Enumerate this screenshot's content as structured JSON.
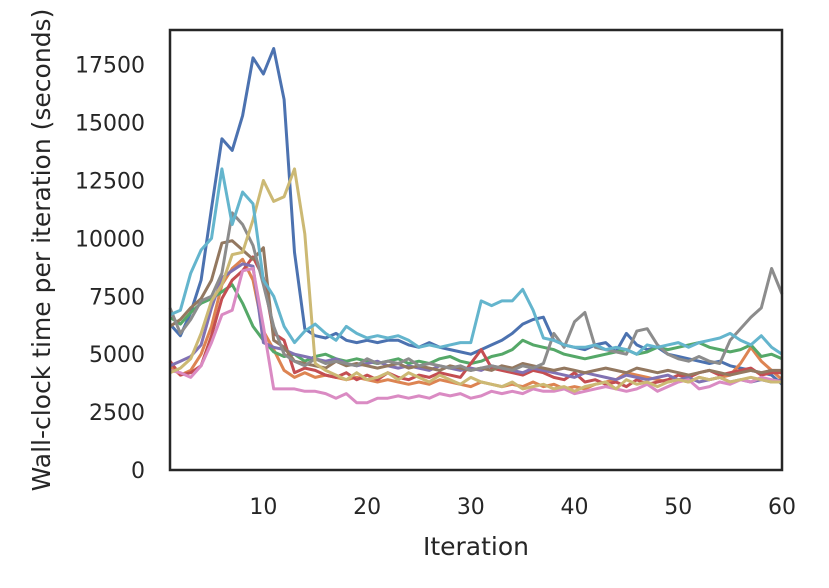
{
  "chart_data": {
    "type": "line",
    "title": "",
    "xlabel": "Iteration",
    "ylabel": "Wall-clock time per iteration (seconds)",
    "xlim": [
      1,
      60
    ],
    "ylim": [
      0,
      19000
    ],
    "xticks": [
      10,
      20,
      30,
      40,
      50,
      60
    ],
    "yticks": [
      0,
      2500,
      5000,
      7500,
      10000,
      12500,
      15000,
      17500
    ],
    "grid": false,
    "legend": "none",
    "x": [
      1,
      2,
      3,
      4,
      5,
      6,
      7,
      8,
      9,
      10,
      11,
      12,
      13,
      14,
      15,
      16,
      17,
      18,
      19,
      20,
      21,
      22,
      23,
      24,
      25,
      26,
      27,
      28,
      29,
      30,
      31,
      32,
      33,
      34,
      35,
      36,
      37,
      38,
      39,
      40,
      41,
      42,
      43,
      44,
      45,
      46,
      47,
      48,
      49,
      50,
      51,
      52,
      53,
      54,
      55,
      56,
      57,
      58,
      59,
      60
    ],
    "series": [
      {
        "color": "#4c72b0",
        "values": [
          6300,
          5800,
          6800,
          8200,
          11300,
          14300,
          13800,
          15300,
          17800,
          17100,
          18200,
          16000,
          9400,
          6100,
          5800,
          5700,
          5900,
          5600,
          5500,
          5600,
          5500,
          5600,
          5600,
          5400,
          5300,
          5500,
          5300,
          5200,
          5100,
          5000,
          5200,
          5400,
          5600,
          5900,
          6300,
          6500,
          6600,
          5600,
          5400,
          5300,
          5200,
          5400,
          5500,
          5100,
          5900,
          5400,
          5200,
          5300,
          5000,
          4900,
          4800,
          4700,
          4600,
          4700,
          4500,
          4400,
          4300,
          4200,
          4100,
          3700
        ]
      },
      {
        "color": "#dd8452",
        "values": [
          4500,
          4100,
          4300,
          5000,
          6200,
          8000,
          8700,
          9100,
          8200,
          6000,
          5200,
          4300,
          4000,
          4200,
          4000,
          4100,
          4000,
          3900,
          4000,
          3900,
          3800,
          3900,
          3800,
          3700,
          3800,
          3700,
          3900,
          3800,
          3700,
          3600,
          3800,
          3700,
          3600,
          3700,
          3600,
          3800,
          3600,
          3700,
          3500,
          3600,
          3500,
          3700,
          3800,
          3900,
          4200,
          4100,
          4000,
          3900,
          3800,
          3900,
          3800,
          4000,
          3900,
          4000,
          4100,
          4600,
          5300,
          4700,
          4300,
          3900
        ]
      },
      {
        "color": "#55a868",
        "values": [
          6600,
          6300,
          6800,
          7200,
          7400,
          7700,
          8000,
          7200,
          6200,
          5600,
          5100,
          4900,
          5000,
          4700,
          4900,
          5000,
          4800,
          4700,
          4800,
          4700,
          4600,
          4700,
          4800,
          4600,
          4700,
          4600,
          4800,
          4900,
          4700,
          4600,
          4700,
          4900,
          5000,
          5200,
          5600,
          5400,
          5300,
          5200,
          5000,
          4900,
          4800,
          4900,
          5000,
          5100,
          5200,
          5000,
          5100,
          5300,
          5200,
          5300,
          5400,
          5500,
          5300,
          5200,
          5100,
          5200,
          5400,
          4900,
          5000,
          4800
        ]
      },
      {
        "color": "#c44e52",
        "values": [
          4700,
          4100,
          4200,
          4500,
          5800,
          7400,
          8200,
          8600,
          9200,
          8300,
          5900,
          5600,
          4200,
          4400,
          4300,
          4100,
          4000,
          4200,
          3900,
          4100,
          3900,
          4200,
          4000,
          3900,
          4100,
          4000,
          4200,
          4100,
          4000,
          4600,
          5200,
          4400,
          4300,
          4200,
          4100,
          4300,
          4200,
          4000,
          3900,
          4200,
          3800,
          3900,
          3700,
          3800,
          3600,
          3900,
          3700,
          3800,
          3900,
          4100,
          4000,
          4200,
          4300,
          4100,
          4200,
          4300,
          4400,
          4100,
          4200,
          4200
        ]
      },
      {
        "color": "#8172b3",
        "values": [
          4500,
          4700,
          4900,
          5400,
          7000,
          8300,
          8600,
          8900,
          8800,
          5500,
          5300,
          5200,
          5000,
          4900,
          4800,
          4700,
          4800,
          4600,
          4500,
          4600,
          4700,
          4500,
          4400,
          4500,
          4400,
          4300,
          4500,
          4400,
          4300,
          4400,
          4300,
          4500,
          4400,
          4300,
          4200,
          4400,
          4300,
          4200,
          4100,
          4000,
          4200,
          4100,
          4000,
          3900,
          4100,
          4000,
          3900,
          4000,
          4100,
          3900,
          4000,
          3800,
          3900,
          4000,
          3800,
          3900,
          3800,
          3900,
          3800,
          3900
        ]
      },
      {
        "color": "#937860",
        "values": [
          6200,
          6500,
          7000,
          7400,
          8200,
          9800,
          9900,
          9500,
          9100,
          9600,
          5600,
          5300,
          4700,
          4600,
          4500,
          4400,
          4700,
          4500,
          4600,
          4500,
          4400,
          4500,
          4600,
          4400,
          4500,
          4400,
          4300,
          4500,
          4400,
          4300,
          4400,
          4300,
          4500,
          4400,
          4600,
          4500,
          4400,
          4300,
          4400,
          4300,
          4200,
          4300,
          4400,
          4300,
          4200,
          4400,
          4300,
          4200,
          4300,
          4200,
          4100,
          4200,
          4300,
          4200,
          4100,
          4200,
          4300,
          4200,
          4300,
          4300
        ]
      },
      {
        "color": "#da8bc3",
        "values": [
          4300,
          4200,
          4000,
          4500,
          5500,
          6700,
          6900,
          8600,
          8700,
          6200,
          3500,
          3500,
          3500,
          3400,
          3400,
          3300,
          3100,
          3300,
          2900,
          2900,
          3100,
          3100,
          3200,
          3100,
          3200,
          3100,
          3300,
          3200,
          3300,
          3100,
          3200,
          3400,
          3300,
          3400,
          3300,
          3500,
          3400,
          3400,
          3500,
          3300,
          3400,
          3500,
          3600,
          3500,
          3400,
          3500,
          3700,
          3400,
          3600,
          3800,
          3900,
          3500,
          3600,
          3800,
          3700,
          3900,
          3800,
          4000,
          3900,
          3800
        ]
      },
      {
        "color": "#8c8c8c",
        "values": [
          7000,
          5900,
          6500,
          7300,
          7500,
          8500,
          11100,
          10600,
          9700,
          8000,
          6200,
          5000,
          4700,
          4500,
          4800,
          4600,
          4700,
          4600,
          4500,
          4800,
          4600,
          4700,
          4600,
          4800,
          4500,
          4600,
          4500,
          4400,
          4500,
          4300,
          4400,
          4500,
          4400,
          4300,
          4500,
          4400,
          4600,
          5900,
          5300,
          6400,
          6800,
          5300,
          5200,
          5100,
          5000,
          6000,
          6100,
          5400,
          5000,
          4800,
          4700,
          4900,
          4700,
          4600,
          5600,
          6100,
          6600,
          7000,
          8700,
          7600
        ]
      },
      {
        "color": "#ccb974",
        "values": [
          4200,
          4400,
          4800,
          5900,
          7300,
          8000,
          9300,
          9400,
          10800,
          12500,
          11600,
          11800,
          13000,
          10200,
          4600,
          4300,
          4100,
          3900,
          4200,
          3900,
          4000,
          4200,
          3900,
          4200,
          4000,
          3800,
          4100,
          3900,
          3700,
          4000,
          3800,
          3700,
          3600,
          3800,
          3500,
          3600,
          3700,
          3500,
          3600,
          3400,
          3600,
          3700,
          3800,
          3500,
          3900,
          3700,
          3800,
          3600,
          3800,
          3900,
          3800,
          4000,
          3900,
          4000,
          3800,
          3900,
          4000,
          3900,
          3800,
          3800
        ]
      },
      {
        "color": "#64b5cd",
        "values": [
          6700,
          6900,
          8500,
          9500,
          10000,
          13000,
          10600,
          12000,
          11500,
          8200,
          7500,
          6200,
          5500,
          6000,
          6300,
          5900,
          5600,
          6200,
          5900,
          5700,
          5800,
          5700,
          5800,
          5600,
          5300,
          5400,
          5300,
          5400,
          5500,
          5500,
          7300,
          7100,
          7300,
          7300,
          7800,
          6900,
          5700,
          5600,
          5400,
          5300,
          5300,
          5400,
          5200,
          5300,
          5200,
          5000,
          5400,
          5300,
          5400,
          5500,
          5300,
          5500,
          5600,
          5700,
          5900,
          5600,
          5400,
          5800,
          5300,
          5000
        ]
      }
    ]
  }
}
